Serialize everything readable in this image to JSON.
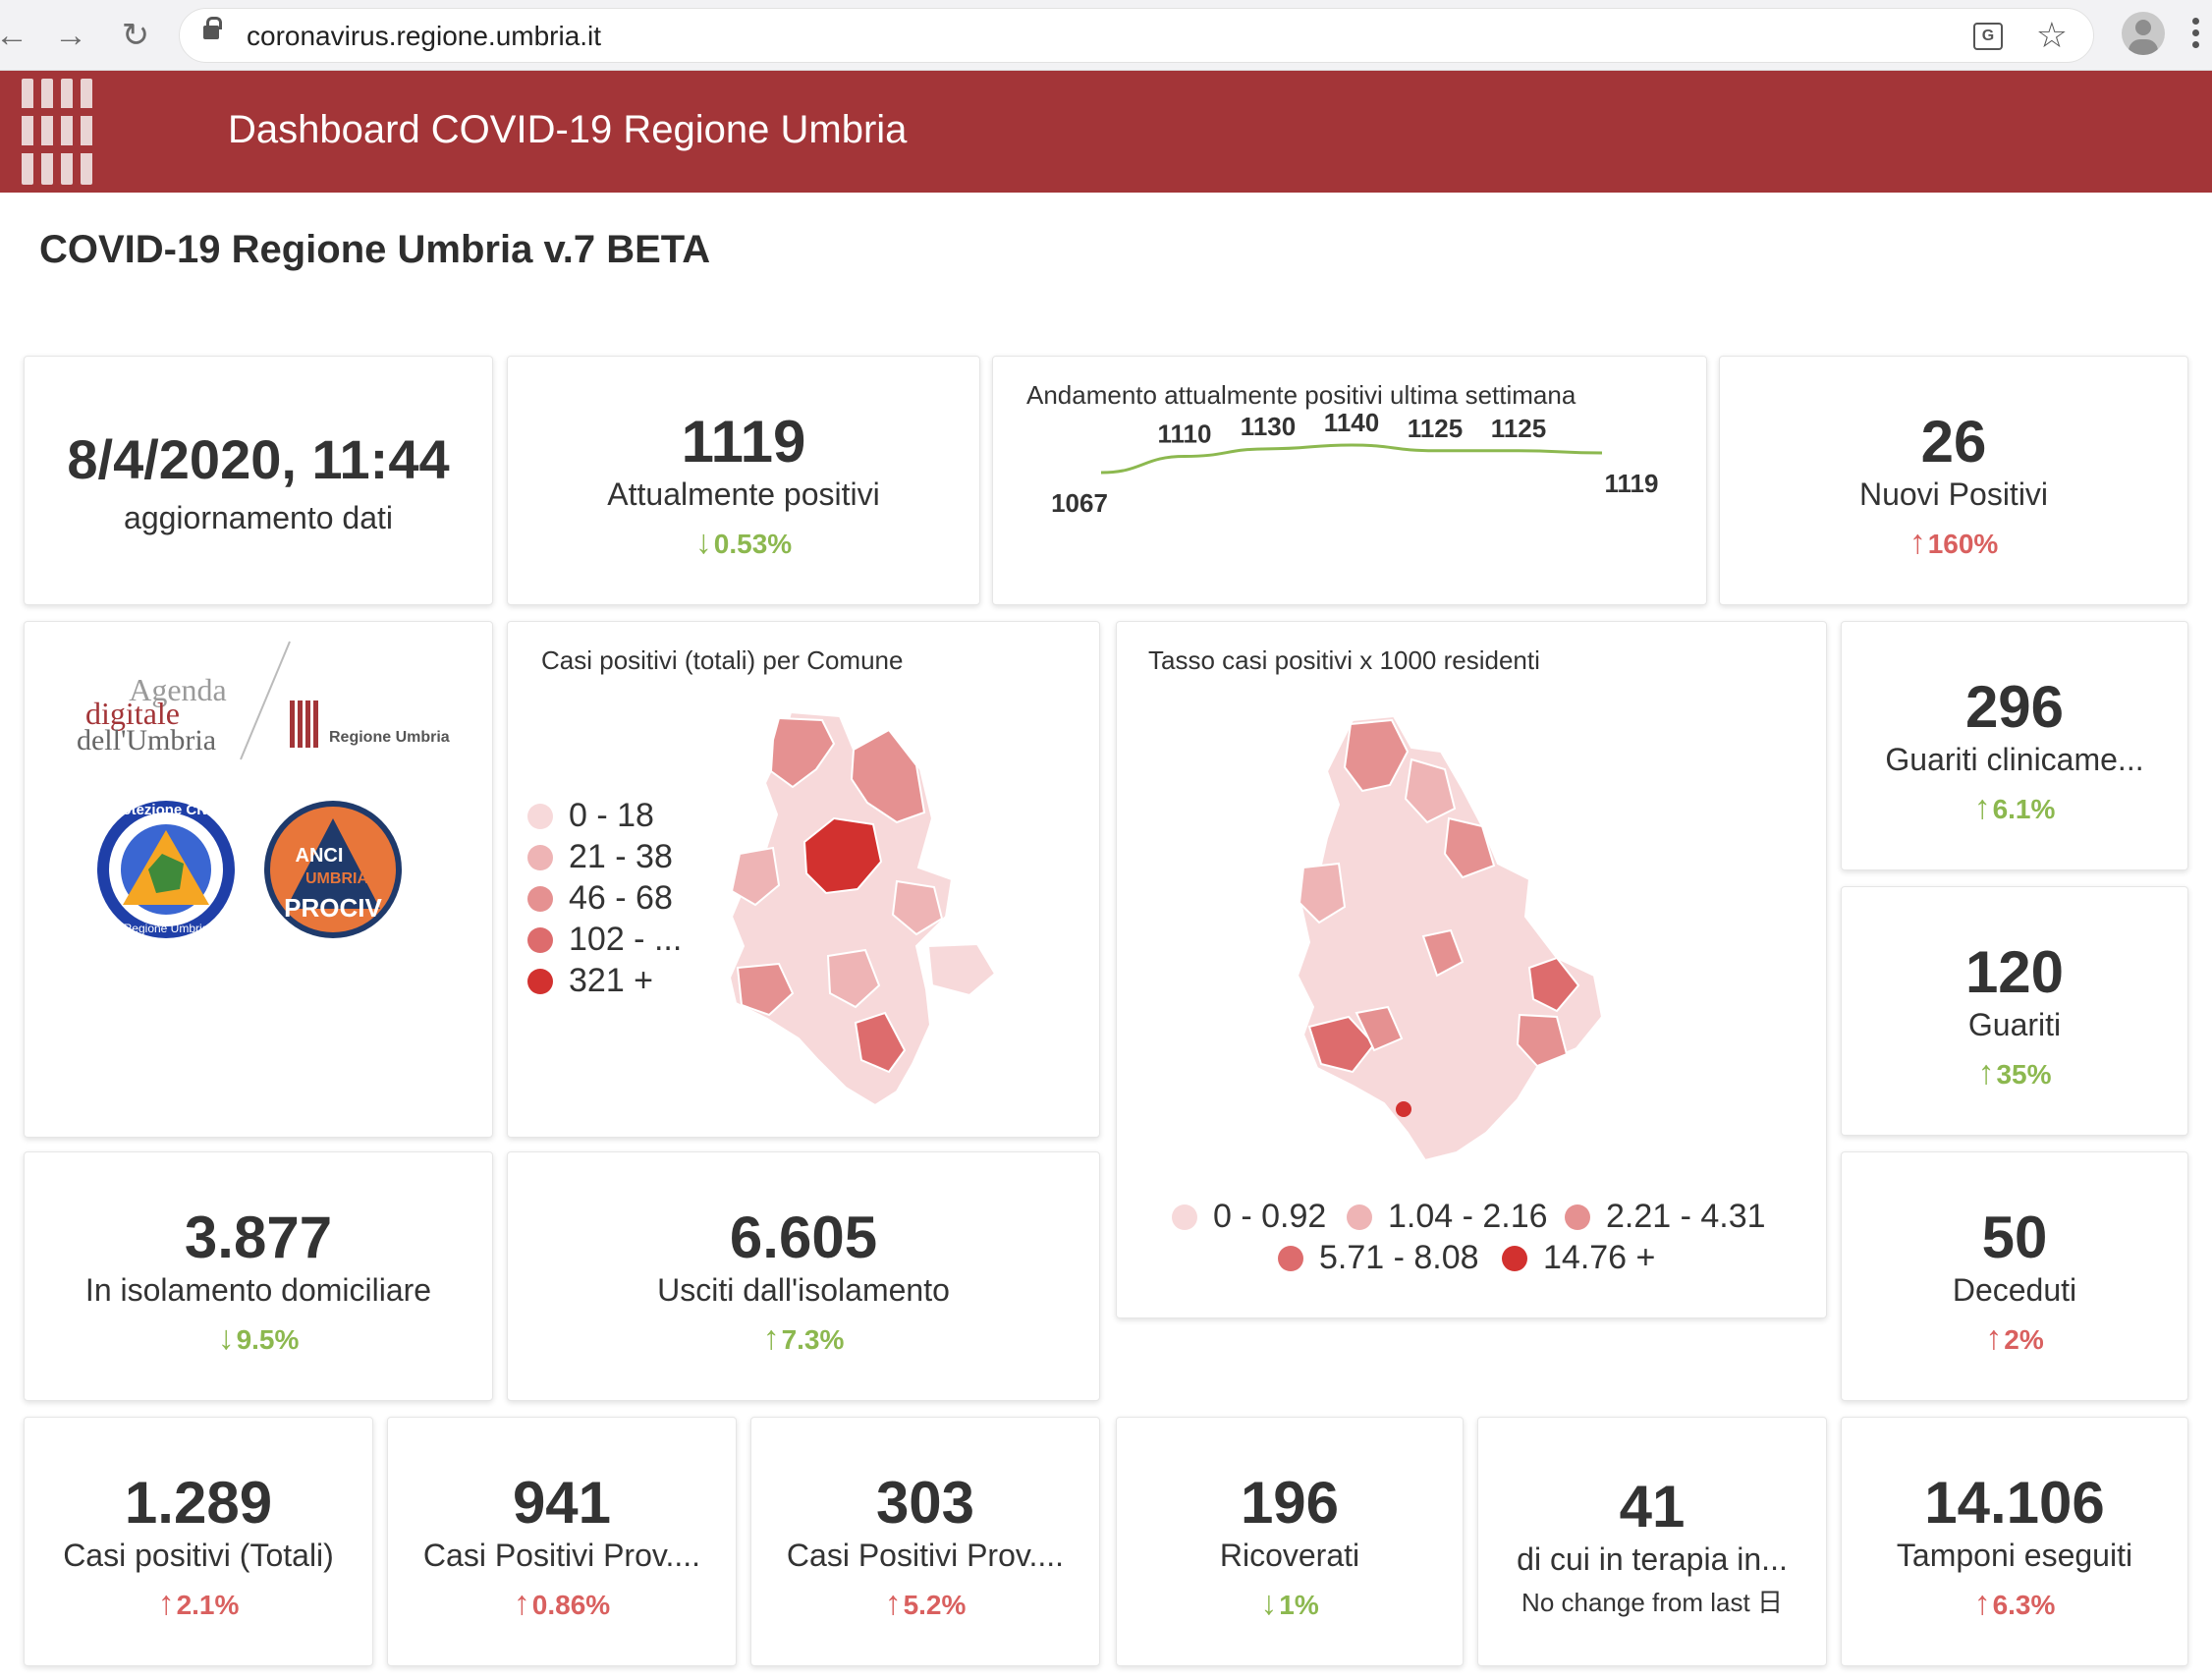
{
  "browser": {
    "url": "coronavirus.regione.umbria.it",
    "back_icon": "arrow-left-icon",
    "forward_icon": "arrow-right-icon",
    "reload_icon": "reload-icon"
  },
  "header": {
    "title": "Dashboard COVID-19 Regione Umbria",
    "color": "#a33538"
  },
  "page": {
    "title": "COVID-19 Regione Umbria v.7 BETA"
  },
  "update": {
    "value": "8/4/2020, 11:44",
    "label": "aggiornamento dati"
  },
  "attualmente_positivi": {
    "value": "1119",
    "label": "Attualmente positivi",
    "delta": "0.53%",
    "direction": "down"
  },
  "trend": {
    "title": "Andamento attualmente positivi ultima settimana",
    "chart_data": {
      "type": "line",
      "values": [
        1067,
        1110,
        1130,
        1140,
        1125,
        1125,
        1119
      ],
      "labels": [
        "1067",
        "1110",
        "1130",
        "1140",
        "1125",
        "1125",
        "1119"
      ],
      "color": "#8cb84f"
    }
  },
  "nuovi_positivi": {
    "value": "26",
    "label": "Nuovi Positivi",
    "delta": "160%",
    "direction": "up"
  },
  "logos": {
    "agenda": [
      "Agenda",
      "digitale",
      "dell'Umbria"
    ],
    "regione": "Regione Umbria",
    "protezione": "Protezione Civile",
    "protezione_sub": "Regione Umbria",
    "anci": [
      "ANCI",
      "UMBRIA",
      "PROCIV"
    ]
  },
  "map_comune": {
    "title": "Casi positivi (totali) per Comune",
    "legend": [
      {
        "label": "0 - 18",
        "color": "#f7d9da"
      },
      {
        "label": "21 - 38",
        "color": "#eeb4b5"
      },
      {
        "label": "46 - 68",
        "color": "#e59191"
      },
      {
        "label": "102 - ...",
        "color": "#dd6c6d"
      },
      {
        "label": "321 +",
        "color": "#d2312f"
      }
    ]
  },
  "map_tasso": {
    "title": "Tasso casi positivi x 1000 residenti",
    "legend": [
      {
        "label": "0 - 0.92",
        "color": "#f7d9da"
      },
      {
        "label": "1.04 - 2.16",
        "color": "#eeb4b5"
      },
      {
        "label": "2.21 - 4.31",
        "color": "#e59191"
      },
      {
        "label": "5.71 - 8.08",
        "color": "#dd6c6d"
      },
      {
        "label": "14.76 +",
        "color": "#d2312f"
      }
    ]
  },
  "guariti_clinicamente": {
    "value": "296",
    "label": "Guariti clinicame...",
    "delta": "6.1%",
    "direction": "up-good"
  },
  "guariti": {
    "value": "120",
    "label": "Guariti",
    "delta": "35%",
    "direction": "up-good"
  },
  "isolamento": {
    "value": "3.877",
    "label": "In isolamento domiciliare",
    "delta": "9.5%",
    "direction": "down"
  },
  "usciti": {
    "value": "6.605",
    "label": "Usciti dall'isolamento",
    "delta": "7.3%",
    "direction": "up-good"
  },
  "deceduti": {
    "value": "50",
    "label": "Deceduti",
    "delta": "2%",
    "direction": "up"
  },
  "bottom": [
    {
      "value": "1.289",
      "label": "Casi positivi (Totali)",
      "delta": "2.1%",
      "direction": "up"
    },
    {
      "value": "941",
      "label": "Casi Positivi Prov....",
      "delta": "0.86%",
      "direction": "up"
    },
    {
      "value": "303",
      "label": "Casi Positivi Prov....",
      "delta": "5.2%",
      "direction": "up"
    },
    {
      "value": "196",
      "label": "Ricoverati",
      "delta": "1%",
      "direction": "down"
    },
    {
      "value": "41",
      "label": "di cui in terapia in...",
      "sub": "No change from last 日"
    },
    {
      "value": "14.106",
      "label": "Tamponi eseguiti",
      "delta": "6.3%",
      "direction": "up"
    }
  ]
}
